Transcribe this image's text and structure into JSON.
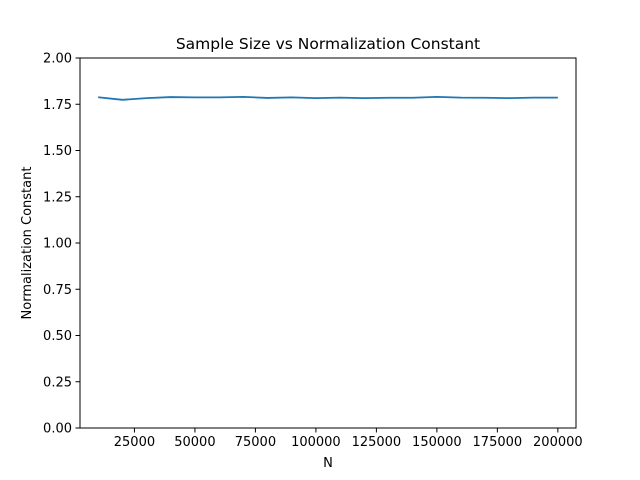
{
  "chart_data": {
    "type": "line",
    "title": "Sample Size vs Normalization Constant",
    "xlabel": "N",
    "ylabel": "Normalization Constant",
    "xlim": [
      2500,
      207500
    ],
    "ylim": [
      0,
      2.0
    ],
    "xticks": [
      25000,
      50000,
      75000,
      100000,
      125000,
      150000,
      175000,
      200000
    ],
    "yticks": [
      0.0,
      0.25,
      0.5,
      0.75,
      1.0,
      1.25,
      1.5,
      1.75,
      2.0
    ],
    "ytick_labels": [
      "0.00",
      "0.25",
      "0.50",
      "0.75",
      "1.00",
      "1.25",
      "1.50",
      "1.75",
      "2.00"
    ],
    "grid": false,
    "series": [
      {
        "color": "#1f77b4",
        "x": [
          10000,
          20000,
          30000,
          40000,
          50000,
          60000,
          70000,
          80000,
          90000,
          100000,
          110000,
          120000,
          130000,
          140000,
          150000,
          160000,
          170000,
          180000,
          190000,
          200000
        ],
        "y": [
          1.788,
          1.774,
          1.783,
          1.789,
          1.787,
          1.787,
          1.79,
          1.784,
          1.787,
          1.783,
          1.786,
          1.783,
          1.785,
          1.785,
          1.79,
          1.786,
          1.785,
          1.783,
          1.786,
          1.786
        ]
      }
    ]
  }
}
